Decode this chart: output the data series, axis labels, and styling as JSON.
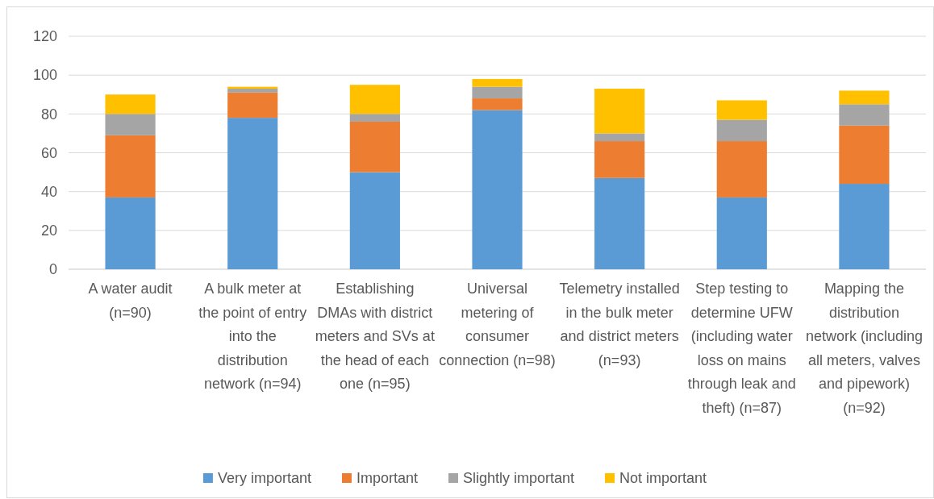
{
  "chart_data": {
    "type": "bar",
    "stacked": true,
    "categories": [
      "A water audit (n=90)",
      "A bulk meter at the point of entry into the distribution network (n=94)",
      "Establishing DMAs with district meters and SVs at the head of each one (n=95)",
      "Universal metering of consumer connection (n=98)",
      "Telemetry installed in the bulk meter and district meters (n=93)",
      "Step testing to determine UFW (including water loss on mains through leak and theft) (n=87)",
      "Mapping the distribution network (including all meters, valves and pipework) (n=92)"
    ],
    "series": [
      {
        "name": "Very important",
        "color": "#5b9bd5",
        "values": [
          37,
          78,
          50,
          82,
          47,
          37,
          44
        ]
      },
      {
        "name": "Important",
        "color": "#ed7d31",
        "values": [
          32,
          13,
          26,
          6,
          19,
          29,
          30
        ]
      },
      {
        "name": "Slightly important",
        "color": "#a5a5a5",
        "values": [
          11,
          2,
          4,
          6,
          4,
          11,
          11
        ]
      },
      {
        "name": "Not important",
        "color": "#ffc000",
        "values": [
          10,
          1,
          15,
          4,
          23,
          10,
          7
        ]
      }
    ],
    "ylim": [
      0,
      120
    ],
    "yticks": [
      0,
      20,
      40,
      60,
      80,
      100,
      120
    ],
    "grid": "y",
    "legend": "bottom"
  }
}
